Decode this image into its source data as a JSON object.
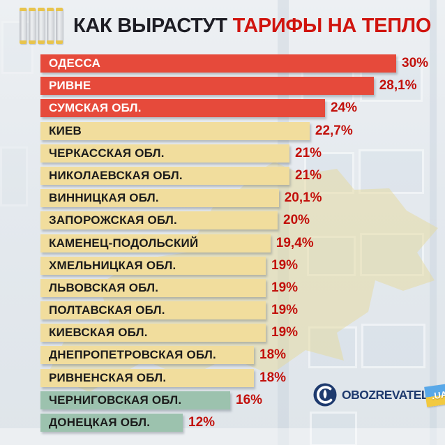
{
  "header": {
    "title_black": "КАК ВЫРАСТУТ",
    "title_red": "ТАРИФЫ НА ТЕПЛО"
  },
  "branding": {
    "logo_text": "OBOZREVATEL",
    "logo_suffix": ".UA",
    "globe_icon": "globe-icon"
  },
  "colors": {
    "red_bar": "#E64A3B",
    "yellow_bar": "#F1DD9D",
    "teal_bar": "#9CC2AE",
    "value_text": "#C2100B",
    "title_dark": "#1D1D24",
    "title_red": "#D0140E",
    "logo_navy": "#1E3A6E",
    "flag_blue": "#59A8E8",
    "flag_yellow": "#F2C93F",
    "radiator_cap_yellow": "#E8C44C"
  },
  "chart_data": {
    "type": "bar",
    "orientation": "horizontal",
    "title": "КАК ВЫРАСТУТ ТАРИФЫ НА ТЕПЛО",
    "unit": "%",
    "xlim": [
      0,
      30
    ],
    "grid": false,
    "legend": false,
    "items": [
      {
        "name": "ОДЕССА",
        "value": 30,
        "label": "30%",
        "color": "red"
      },
      {
        "name": "РИВНЕ",
        "value": 28.1,
        "label": "28,1%",
        "color": "red"
      },
      {
        "name": "СУМСКАЯ ОБЛ.",
        "value": 24,
        "label": "24%",
        "color": "red"
      },
      {
        "name": "КИЕВ",
        "value": 22.7,
        "label": "22,7%",
        "color": "yellow"
      },
      {
        "name": "ЧЕРКАССКАЯ ОБЛ.",
        "value": 21,
        "label": "21%",
        "color": "yellow"
      },
      {
        "name": "НИКОЛАЕВСКАЯ ОБЛ.",
        "value": 21,
        "label": "21%",
        "color": "yellow"
      },
      {
        "name": "ВИННИЦКАЯ ОБЛ.",
        "value": 20.1,
        "label": "20,1%",
        "color": "yellow"
      },
      {
        "name": "ЗАПОРОЖСКАЯ ОБЛ.",
        "value": 20,
        "label": "20%",
        "color": "yellow"
      },
      {
        "name": "КАМЕНЕЦ-ПОДОЛЬСКИЙ",
        "value": 19.4,
        "label": "19,4%",
        "color": "yellow"
      },
      {
        "name": "ХМЕЛЬНИЦКАЯ ОБЛ.",
        "value": 19,
        "label": "19%",
        "color": "yellow"
      },
      {
        "name": "ЛЬВОВСКАЯ ОБЛ.",
        "value": 19,
        "label": "19%",
        "color": "yellow"
      },
      {
        "name": "ПОЛТАВСКАЯ ОБЛ.",
        "value": 19,
        "label": "19%",
        "color": "yellow"
      },
      {
        "name": "КИЕВСКАЯ ОБЛ.",
        "value": 19,
        "label": "19%",
        "color": "yellow"
      },
      {
        "name": "ДНЕПРОПЕТРОВСКАЯ ОБЛ.",
        "value": 18,
        "label": "18%",
        "color": "yellow"
      },
      {
        "name": "РИВНЕНСКАЯ ОБЛ.",
        "value": 18,
        "label": "18%",
        "color": "yellow"
      },
      {
        "name": "ЧЕРНИГОВСКАЯ ОБЛ.",
        "value": 16,
        "label": "16%",
        "color": "teal"
      },
      {
        "name": "ДОНЕЦКАЯ ОБЛ.",
        "value": 12,
        "label": "12%",
        "color": "teal"
      }
    ]
  }
}
